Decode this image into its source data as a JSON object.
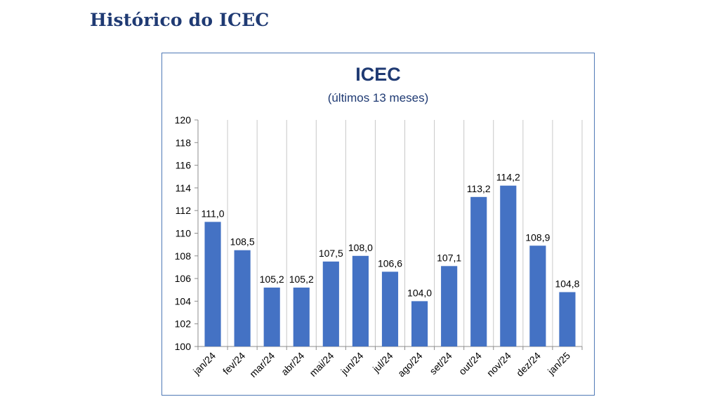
{
  "page": {
    "heading": "Histórico do ICEC"
  },
  "chart_data": {
    "type": "bar",
    "title": "ICEC",
    "subtitle": "(últimos 13 meses)",
    "categories": [
      "jan/24",
      "fev/24",
      "mar/24",
      "abr/24",
      "mai/24",
      "jun/24",
      "jul/24",
      "ago/24",
      "set/24",
      "out/24",
      "nov/24",
      "dez/24",
      "jan/25"
    ],
    "values": [
      111.0,
      108.5,
      105.2,
      105.2,
      107.5,
      108.0,
      106.6,
      104.0,
      107.1,
      113.2,
      114.2,
      108.9,
      104.8
    ],
    "data_labels": [
      "111,0",
      "108,5",
      "105,2",
      "105,2",
      "107,5",
      "108,0",
      "106,6",
      "104,0",
      "107,1",
      "113,2",
      "114,2",
      "108,9",
      "104,8"
    ],
    "ylim": [
      100,
      120
    ],
    "yticks": [
      100,
      102,
      104,
      106,
      108,
      110,
      112,
      114,
      116,
      118,
      120
    ],
    "xlabel": "",
    "ylabel": "",
    "grid": "vertical",
    "legend": "none",
    "bar_color": "#4472c4",
    "title_color": "#1f3a73"
  }
}
